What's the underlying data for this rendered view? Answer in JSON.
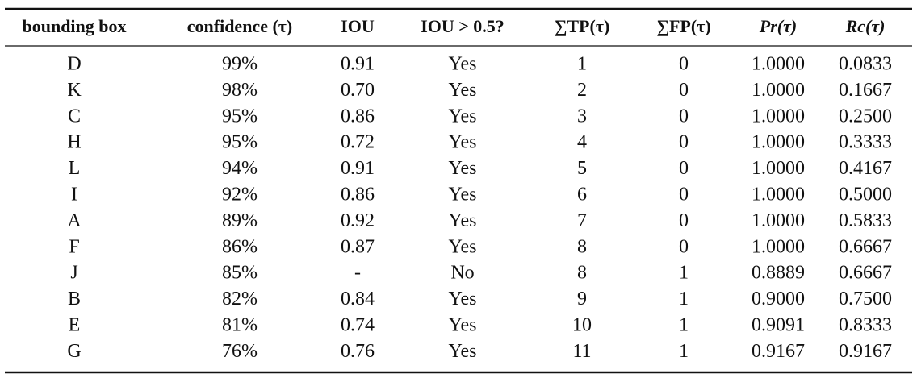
{
  "table": {
    "header": [
      "bounding box",
      "confidence (τ)",
      "IOU",
      "IOU > 0.5?",
      "∑TP(τ)",
      "∑FP(τ)",
      "Pr(τ)",
      "Rc(τ)"
    ],
    "rows": [
      [
        "D",
        "99%",
        "0.91",
        "Yes",
        "1",
        "0",
        "1.0000",
        "0.0833"
      ],
      [
        "K",
        "98%",
        "0.70",
        "Yes",
        "2",
        "0",
        "1.0000",
        "0.1667"
      ],
      [
        "C",
        "95%",
        "0.86",
        "Yes",
        "3",
        "0",
        "1.0000",
        "0.2500"
      ],
      [
        "H",
        "95%",
        "0.72",
        "Yes",
        "4",
        "0",
        "1.0000",
        "0.3333"
      ],
      [
        "L",
        "94%",
        "0.91",
        "Yes",
        "5",
        "0",
        "1.0000",
        "0.4167"
      ],
      [
        "I",
        "92%",
        "0.86",
        "Yes",
        "6",
        "0",
        "1.0000",
        "0.5000"
      ],
      [
        "A",
        "89%",
        "0.92",
        "Yes",
        "7",
        "0",
        "1.0000",
        "0.5833"
      ],
      [
        "F",
        "86%",
        "0.87",
        "Yes",
        "8",
        "0",
        "1.0000",
        "0.6667"
      ],
      [
        "J",
        "85%",
        "-",
        "No",
        "8",
        "1",
        "0.8889",
        "0.6667"
      ],
      [
        "B",
        "82%",
        "0.84",
        "Yes",
        "9",
        "1",
        "0.9000",
        "0.7500"
      ],
      [
        "E",
        "81%",
        "0.74",
        "Yes",
        "10",
        "1",
        "0.9091",
        "0.8333"
      ],
      [
        "G",
        "76%",
        "0.76",
        "Yes",
        "11",
        "1",
        "0.9167",
        "0.9167"
      ]
    ]
  }
}
